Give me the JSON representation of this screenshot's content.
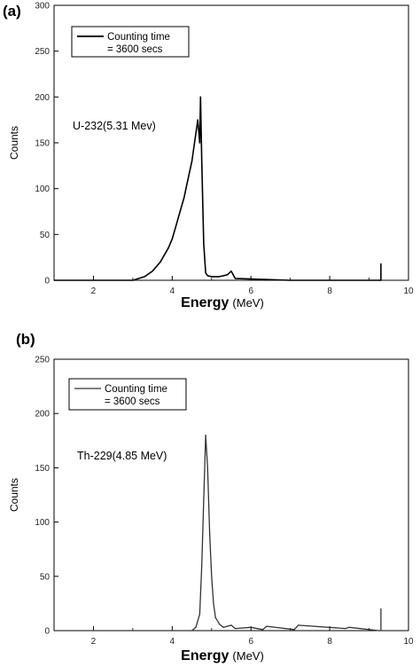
{
  "chart_data": [
    {
      "type": "line",
      "panel_label": "(a)",
      "xlabel": "Energy",
      "xlabel_unit": "(MeV)",
      "ylabel": "Counts",
      "xlim": [
        1,
        10
      ],
      "ylim": [
        0,
        300
      ],
      "xticks": [
        2,
        4,
        6,
        8,
        10
      ],
      "yticks": [
        0,
        50,
        100,
        150,
        200,
        250,
        300
      ],
      "legend": {
        "line1": "Counting time",
        "line2": "= 3600 secs",
        "position": "top-left"
      },
      "annotation": "U-232(5.31 Mev)",
      "series": [
        {
          "color": "#000000",
          "x": [
            1.0,
            3.0,
            3.3,
            3.5,
            3.7,
            3.9,
            4.0,
            4.1,
            4.2,
            4.3,
            4.4,
            4.5,
            4.6,
            4.65,
            4.7,
            4.72,
            4.75,
            4.8,
            4.85,
            4.9,
            5.0,
            5.2,
            5.4,
            5.5,
            5.6,
            7.0,
            9.25,
            9.3,
            9.3
          ],
          "y": [
            0,
            0,
            4,
            10,
            20,
            35,
            45,
            60,
            75,
            90,
            110,
            130,
            160,
            175,
            150,
            200,
            130,
            40,
            8,
            5,
            4,
            4,
            6,
            10,
            2,
            0,
            0,
            0,
            18
          ]
        }
      ]
    },
    {
      "type": "line",
      "panel_label": "(b)",
      "xlabel": "Energy",
      "xlabel_unit": "(MeV)",
      "ylabel": "Counts",
      "xlim": [
        1,
        10
      ],
      "ylim": [
        0,
        250
      ],
      "xticks": [
        2,
        4,
        6,
        8,
        10
      ],
      "yticks": [
        0,
        50,
        100,
        150,
        200,
        250
      ],
      "legend": {
        "line1": "Counting time",
        "line2": "= 3600 secs",
        "position": "top-left"
      },
      "annotation": "Th-229(4.85 MeV)",
      "series": [
        {
          "color": "#333333",
          "x": [
            1.0,
            4.5,
            4.6,
            4.7,
            4.75,
            4.8,
            4.85,
            4.9,
            4.95,
            5.0,
            5.05,
            5.1,
            5.2,
            5.3,
            5.5,
            5.6,
            6.0,
            6.3,
            6.4,
            7.1,
            7.2,
            8.4,
            8.5,
            9.25,
            9.3,
            9.3
          ],
          "y": [
            0,
            0,
            3,
            15,
            60,
            120,
            180,
            150,
            90,
            50,
            25,
            12,
            6,
            3,
            5,
            2,
            3,
            1,
            4,
            1,
            5,
            2,
            3,
            0,
            0,
            20
          ]
        }
      ]
    }
  ]
}
